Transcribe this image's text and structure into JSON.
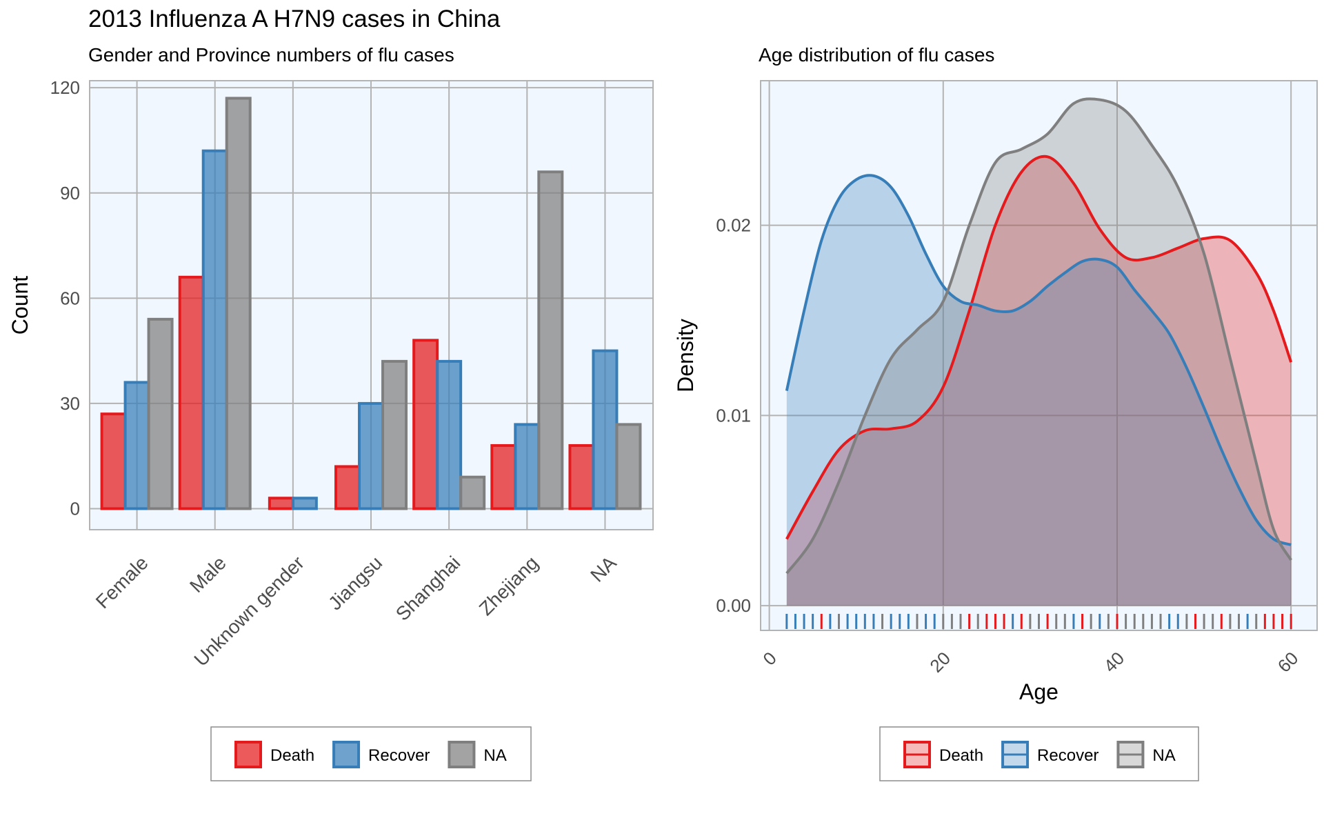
{
  "title": "2013 Influenza A H7N9 cases in China",
  "colors": {
    "Death": "#e41a1c",
    "Recover": "#377eb8",
    "NA": "#7f7f7f",
    "panel": "#f0f7fe",
    "grid": "#b3b3b3"
  },
  "chart_data": [
    {
      "type": "bar",
      "subtitle": "Gender and Province numbers of flu cases",
      "ylabel": "Count",
      "ylim": [
        -6,
        122
      ],
      "yticks": [
        0,
        30,
        60,
        90,
        120
      ],
      "categories": [
        "Female",
        "Male",
        "Unknown gender",
        "Jiangsu",
        "Shanghai",
        "Zhejiang",
        "NA"
      ],
      "series": [
        {
          "name": "Death",
          "values": [
            27,
            66,
            3,
            12,
            48,
            18,
            18
          ]
        },
        {
          "name": "Recover",
          "values": [
            36,
            102,
            3,
            30,
            42,
            24,
            45
          ]
        },
        {
          "name": "NA",
          "values": [
            54,
            117,
            null,
            42,
            9,
            96,
            24
          ]
        }
      ],
      "legend": {
        "position": "bottom",
        "entries": [
          "Death",
          "Recover",
          "NA"
        ]
      }
    },
    {
      "type": "area",
      "subtitle": "Age distribution of flu cases",
      "xlabel": "Age",
      "ylabel": "Density",
      "xlim": [
        -1,
        63
      ],
      "ylim": [
        -0.0013,
        0.0276
      ],
      "xticks": [
        0,
        20,
        40,
        60
      ],
      "yticks": [
        0.0,
        0.01,
        0.02
      ],
      "ytick_labels": [
        "0.00",
        "0.01",
        "0.02"
      ],
      "series": [
        {
          "name": "Death",
          "x": [
            2,
            5,
            8,
            11,
            14,
            17,
            20,
            23,
            26,
            29,
            32,
            35,
            38,
            41,
            44,
            47,
            50,
            53,
            56,
            58,
            60
          ],
          "y": [
            0.0035,
            0.006,
            0.0082,
            0.0092,
            0.0093,
            0.0097,
            0.0115,
            0.0155,
            0.02,
            0.0228,
            0.0236,
            0.0222,
            0.0198,
            0.0183,
            0.0183,
            0.0188,
            0.0193,
            0.0192,
            0.0175,
            0.0155,
            0.0128
          ]
        },
        {
          "name": "Recover",
          "x": [
            2,
            4,
            6,
            8,
            10,
            12,
            14,
            16,
            18,
            20,
            22,
            24,
            26,
            28,
            30,
            32,
            34,
            36,
            38,
            40,
            42,
            44,
            46,
            48,
            50,
            52,
            54,
            56,
            58,
            60
          ],
          "y": [
            0.0113,
            0.0155,
            0.0192,
            0.0214,
            0.0224,
            0.0226,
            0.022,
            0.0205,
            0.0185,
            0.0168,
            0.016,
            0.0158,
            0.0155,
            0.0155,
            0.016,
            0.0168,
            0.0175,
            0.0181,
            0.0182,
            0.0178,
            0.0166,
            0.0155,
            0.0143,
            0.0125,
            0.0104,
            0.0082,
            0.0062,
            0.0045,
            0.0035,
            0.0032
          ]
        },
        {
          "name": "NA",
          "x": [
            2,
            5,
            8,
            11,
            14,
            17,
            20,
            23,
            26,
            29,
            32,
            35,
            38,
            41,
            44,
            47,
            50,
            53,
            56,
            58,
            60
          ],
          "y": [
            0.0017,
            0.0035,
            0.0065,
            0.01,
            0.013,
            0.0145,
            0.016,
            0.02,
            0.0233,
            0.024,
            0.0248,
            0.0264,
            0.0266,
            0.026,
            0.0242,
            0.022,
            0.0185,
            0.013,
            0.0075,
            0.004,
            0.0024
          ]
        }
      ],
      "rug": [
        {
          "x": 2,
          "s": "Recover"
        },
        {
          "x": 3,
          "s": "Recover"
        },
        {
          "x": 4,
          "s": "Recover"
        },
        {
          "x": 5,
          "s": "Recover"
        },
        {
          "x": 6,
          "s": "Death"
        },
        {
          "x": 7,
          "s": "Recover"
        },
        {
          "x": 8,
          "s": "NA"
        },
        {
          "x": 9,
          "s": "Recover"
        },
        {
          "x": 10,
          "s": "Recover"
        },
        {
          "x": 11,
          "s": "Recover"
        },
        {
          "x": 12,
          "s": "Recover"
        },
        {
          "x": 13,
          "s": "NA"
        },
        {
          "x": 14,
          "s": "Recover"
        },
        {
          "x": 15,
          "s": "Recover"
        },
        {
          "x": 16,
          "s": "Recover"
        },
        {
          "x": 17,
          "s": "NA"
        },
        {
          "x": 18,
          "s": "Recover"
        },
        {
          "x": 19,
          "s": "Recover"
        },
        {
          "x": 20,
          "s": "NA"
        },
        {
          "x": 21,
          "s": "NA"
        },
        {
          "x": 22,
          "s": "NA"
        },
        {
          "x": 23,
          "s": "Death"
        },
        {
          "x": 24,
          "s": "NA"
        },
        {
          "x": 25,
          "s": "Death"
        },
        {
          "x": 26,
          "s": "Death"
        },
        {
          "x": 27,
          "s": "Death"
        },
        {
          "x": 28,
          "s": "Recover"
        },
        {
          "x": 29,
          "s": "Death"
        },
        {
          "x": 30,
          "s": "NA"
        },
        {
          "x": 31,
          "s": "NA"
        },
        {
          "x": 32,
          "s": "Death"
        },
        {
          "x": 33,
          "s": "NA"
        },
        {
          "x": 34,
          "s": "NA"
        },
        {
          "x": 35,
          "s": "Recover"
        },
        {
          "x": 36,
          "s": "Death"
        },
        {
          "x": 37,
          "s": "NA"
        },
        {
          "x": 38,
          "s": "Recover"
        },
        {
          "x": 39,
          "s": "NA"
        },
        {
          "x": 40,
          "s": "Death"
        },
        {
          "x": 41,
          "s": "NA"
        },
        {
          "x": 42,
          "s": "NA"
        },
        {
          "x": 43,
          "s": "NA"
        },
        {
          "x": 44,
          "s": "NA"
        },
        {
          "x": 45,
          "s": "NA"
        },
        {
          "x": 46,
          "s": "Recover"
        },
        {
          "x": 47,
          "s": "Recover"
        },
        {
          "x": 48,
          "s": "NA"
        },
        {
          "x": 49,
          "s": "Death"
        },
        {
          "x": 50,
          "s": "NA"
        },
        {
          "x": 51,
          "s": "NA"
        },
        {
          "x": 52,
          "s": "Death"
        },
        {
          "x": 53,
          "s": "NA"
        },
        {
          "x": 54,
          "s": "NA"
        },
        {
          "x": 55,
          "s": "Recover"
        },
        {
          "x": 56,
          "s": "NA"
        },
        {
          "x": 57,
          "s": "Death"
        },
        {
          "x": 58,
          "s": "Death"
        },
        {
          "x": 59,
          "s": "Death"
        },
        {
          "x": 60,
          "s": "Death"
        }
      ],
      "legend": {
        "position": "bottom",
        "entries": [
          "Death",
          "Recover",
          "NA"
        ]
      }
    }
  ]
}
